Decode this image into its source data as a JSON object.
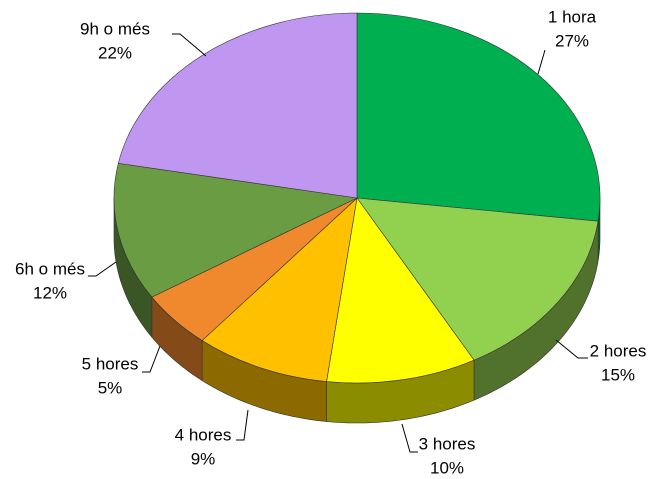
{
  "chart_data": {
    "type": "pie",
    "categories": [
      "1 hora",
      "2 hores",
      "3 hores",
      "4 hores",
      "5 hores",
      "6h o més",
      "9h o més"
    ],
    "values": [
      27,
      15,
      10,
      9,
      5,
      12,
      22
    ],
    "value_labels": [
      "27%",
      "15%",
      "10%",
      "9%",
      "5%",
      "12%",
      "22%"
    ],
    "colors": [
      "#00b050",
      "#92d050",
      "#ffff00",
      "#ffc000",
      "#f0892e",
      "#6a9c44",
      "#bf97f0"
    ]
  }
}
